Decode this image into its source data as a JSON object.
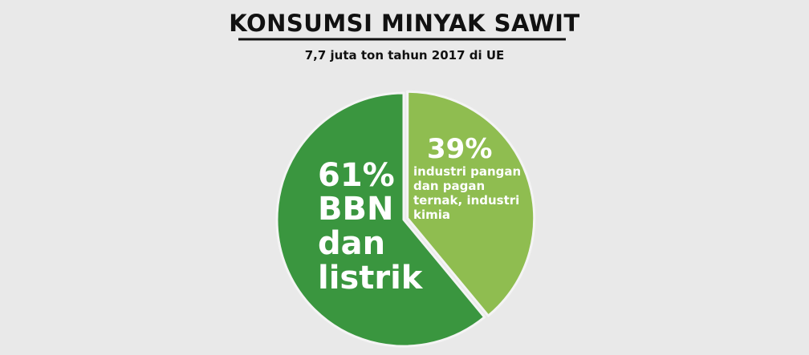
{
  "chart_data": {
    "type": "pie",
    "title": "KONSUMSI MINYAK SAWIT",
    "subtitle": "7,7 juta ton tahun 2017 di UE",
    "categories": [
      "industri pangan dan pagan ternak, industri kimia",
      "BBN dan listrik"
    ],
    "values": [
      39,
      61
    ],
    "value_labels": [
      "39%",
      "61%"
    ],
    "colors": [
      "#8fbd50",
      "#3a963f"
    ]
  }
}
